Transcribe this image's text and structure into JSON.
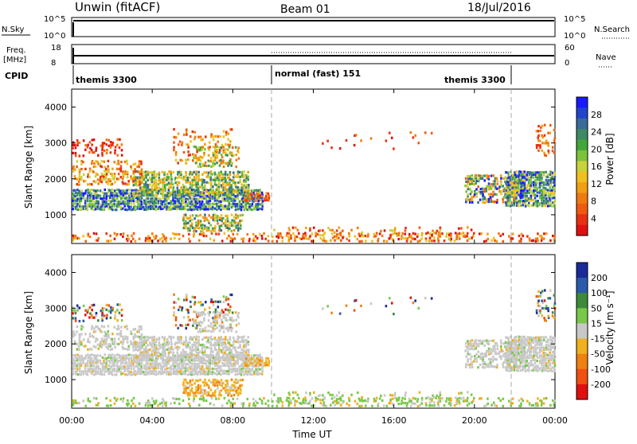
{
  "header": {
    "station": "Unwin (fitACF)",
    "beam": "Beam 01",
    "date": "18/Jul/2016"
  },
  "top_panels": {
    "nsky_label": "N.Sky",
    "nsearch_label": "N.Search",
    "noise_ticks_left": [
      "10^5",
      "10^0"
    ],
    "noise_ticks_right": [
      "10^5",
      "10^0"
    ],
    "freq_label_lines": [
      "Freq.",
      "[MHz]"
    ],
    "freq_ticks": [
      "18",
      "8"
    ],
    "nave_label": "Nave",
    "nave_ticks": [
      "60",
      "0"
    ],
    "cpid_label": "CPID",
    "cpid_segments": [
      {
        "label": "themis 3300",
        "start_h": 0,
        "end_h": 10
      },
      {
        "label": "normal (fast) 151",
        "start_h": 10,
        "end_h": 22
      },
      {
        "label": "themis 3300",
        "start_h": 22,
        "end_h": 24
      }
    ]
  },
  "chart_data": [
    {
      "type": "heatmap",
      "name": "power",
      "ylabel": "Slant Range [km]",
      "yticks": [
        "1000",
        "2000",
        "3000",
        "4000"
      ],
      "ylim": [
        200,
        4500
      ],
      "colorbar_label": "Power [dB]",
      "colorbar_ticks": [
        "4",
        "8",
        "12",
        "16",
        "20",
        "24",
        "28"
      ],
      "colorbar_colors": [
        "#1a1aff",
        "#2244cc",
        "#3a6a9a",
        "#3d8a64",
        "#43a63a",
        "#7cc23a",
        "#c8d23a",
        "#f0c020",
        "#f0a010",
        "#f07a10",
        "#f05a10",
        "#e83010",
        "#e01010"
      ]
    },
    {
      "type": "heatmap",
      "name": "velocity",
      "ylabel": "Slant Range [km]",
      "yticks": [
        "1000",
        "2000",
        "3000",
        "4000"
      ],
      "ylim": [
        200,
        4500
      ],
      "colorbar_label": "Velocity [m s⁻¹]",
      "colorbar_ticks": [
        "200",
        "100",
        "50",
        "15",
        "-15",
        "-50",
        "-100",
        "-200"
      ],
      "colorbar_colors": [
        "#1a2a9a",
        "#2a5aaa",
        "#3d8a3a",
        "#7ac84a",
        "#c8c8c8",
        "#f0b020",
        "#f08010",
        "#f05010",
        "#e01010"
      ]
    }
  ],
  "x_axis": {
    "ticks": [
      "00:00",
      "04:00",
      "08:00",
      "12:00",
      "16:00",
      "20:00",
      "00:00"
    ],
    "label": "Time UT"
  }
}
